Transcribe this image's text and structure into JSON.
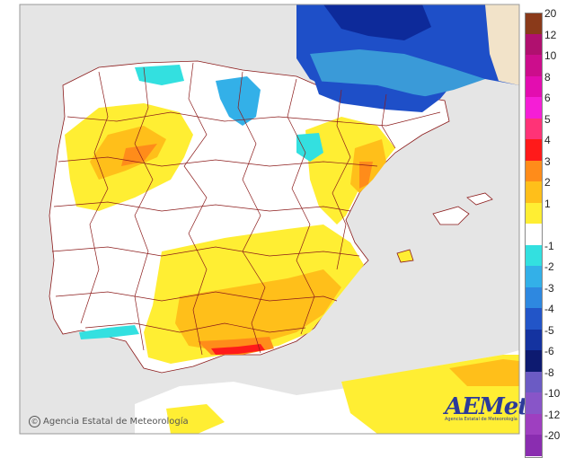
{
  "map": {
    "credit": "Agencia Estatal de Meteorología",
    "logo_word": "AEMet",
    "logo_sub": "Agencia Estatal de Meteorología"
  },
  "legend": {
    "items": [
      {
        "label": "20",
        "color": "#8a3a1a"
      },
      {
        "label": "12",
        "color": "#b0106f"
      },
      {
        "label": "10",
        "color": "#cc0d8c"
      },
      {
        "label": "8",
        "color": "#e30db0"
      },
      {
        "label": "6",
        "color": "#f51ed6"
      },
      {
        "label": "5",
        "color": "#ff3377"
      },
      {
        "label": "4",
        "color": "#ff1a1a"
      },
      {
        "label": "3",
        "color": "#ff8c1a"
      },
      {
        "label": "2",
        "color": "#ffbf1a"
      },
      {
        "label": "1",
        "color": "#ffee33"
      },
      {
        "label": "",
        "color": "#ffffff"
      },
      {
        "label": "-1",
        "color": "#33e0e0"
      },
      {
        "label": "-2",
        "color": "#33b0e8"
      },
      {
        "label": "-3",
        "color": "#2e88e0"
      },
      {
        "label": "-4",
        "color": "#2255c8"
      },
      {
        "label": "-5",
        "color": "#1433a0"
      },
      {
        "label": "-6",
        "color": "#0d1a70"
      },
      {
        "label": "-8",
        "color": "#6b5bc4"
      },
      {
        "label": "-10",
        "color": "#8855c8"
      },
      {
        "label": "-12",
        "color": "#9e3fc0"
      },
      {
        "label": "-20",
        "color": "#8a2db0"
      }
    ]
  },
  "colors": {
    "sea": "#e5e5e5",
    "land_other": "#f2e3c9",
    "land_iberia": "#ffffff",
    "borders": "#8b1a1a"
  }
}
